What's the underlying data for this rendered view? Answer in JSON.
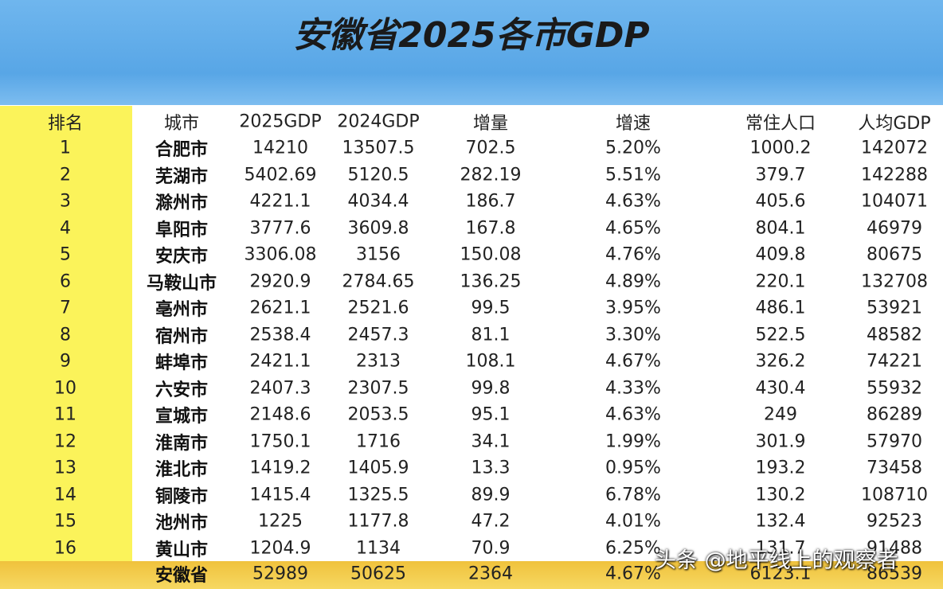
{
  "title": "安徽省2025各市GDP",
  "table": {
    "header": [
      "排名",
      "城市",
      "2025GDP",
      "2024GDP",
      "增量",
      "增速",
      "常住人口",
      "人均GDP"
    ],
    "rows": [
      [
        "1",
        "合肥市",
        "14210",
        "13507.5",
        "702.5",
        "5.20%",
        "1000.2",
        "142072"
      ],
      [
        "2",
        "芜湖市",
        "5402.69",
        "5120.5",
        "282.19",
        "5.51%",
        "379.7",
        "142288"
      ],
      [
        "3",
        "滁州市",
        "4221.1",
        "4034.4",
        "186.7",
        "4.63%",
        "405.6",
        "104071"
      ],
      [
        "4",
        "阜阳市",
        "3777.6",
        "3609.8",
        "167.8",
        "4.65%",
        "804.1",
        "46979"
      ],
      [
        "5",
        "安庆市",
        "3306.08",
        "3156",
        "150.08",
        "4.76%",
        "409.8",
        "80675"
      ],
      [
        "6",
        "马鞍山市",
        "2920.9",
        "2784.65",
        "136.25",
        "4.89%",
        "220.1",
        "132708"
      ],
      [
        "7",
        "亳州市",
        "2621.1",
        "2521.6",
        "99.5",
        "3.95%",
        "486.1",
        "53921"
      ],
      [
        "8",
        "宿州市",
        "2538.4",
        "2457.3",
        "81.1",
        "3.30%",
        "522.5",
        "48582"
      ],
      [
        "9",
        "蚌埠市",
        "2421.1",
        "2313",
        "108.1",
        "4.67%",
        "326.2",
        "74221"
      ],
      [
        "10",
        "六安市",
        "2407.3",
        "2307.5",
        "99.8",
        "4.33%",
        "430.4",
        "55932"
      ],
      [
        "11",
        "宣城市",
        "2148.6",
        "2053.5",
        "95.1",
        "4.63%",
        "249",
        "86289"
      ],
      [
        "12",
        "淮南市",
        "1750.1",
        "1716",
        "34.1",
        "1.99%",
        "301.9",
        "57970"
      ],
      [
        "13",
        "淮北市",
        "1419.2",
        "1405.9",
        "13.3",
        "0.95%",
        "193.2",
        "73458"
      ],
      [
        "14",
        "铜陵市",
        "1415.4",
        "1325.5",
        "89.9",
        "6.78%",
        "130.2",
        "108710"
      ],
      [
        "15",
        "池州市",
        "1225",
        "1177.8",
        "47.2",
        "4.01%",
        "132.4",
        "92523"
      ],
      [
        "16",
        "黄山市",
        "1204.9",
        "1134",
        "70.9",
        "6.25%",
        "131.7",
        "91488"
      ]
    ],
    "total": [
      "安徽省",
      "52989",
      "50625",
      "2364",
      "4.67%",
      "6123.1",
      "86539"
    ]
  },
  "watermark": "头条 @地平线上的观察者"
}
